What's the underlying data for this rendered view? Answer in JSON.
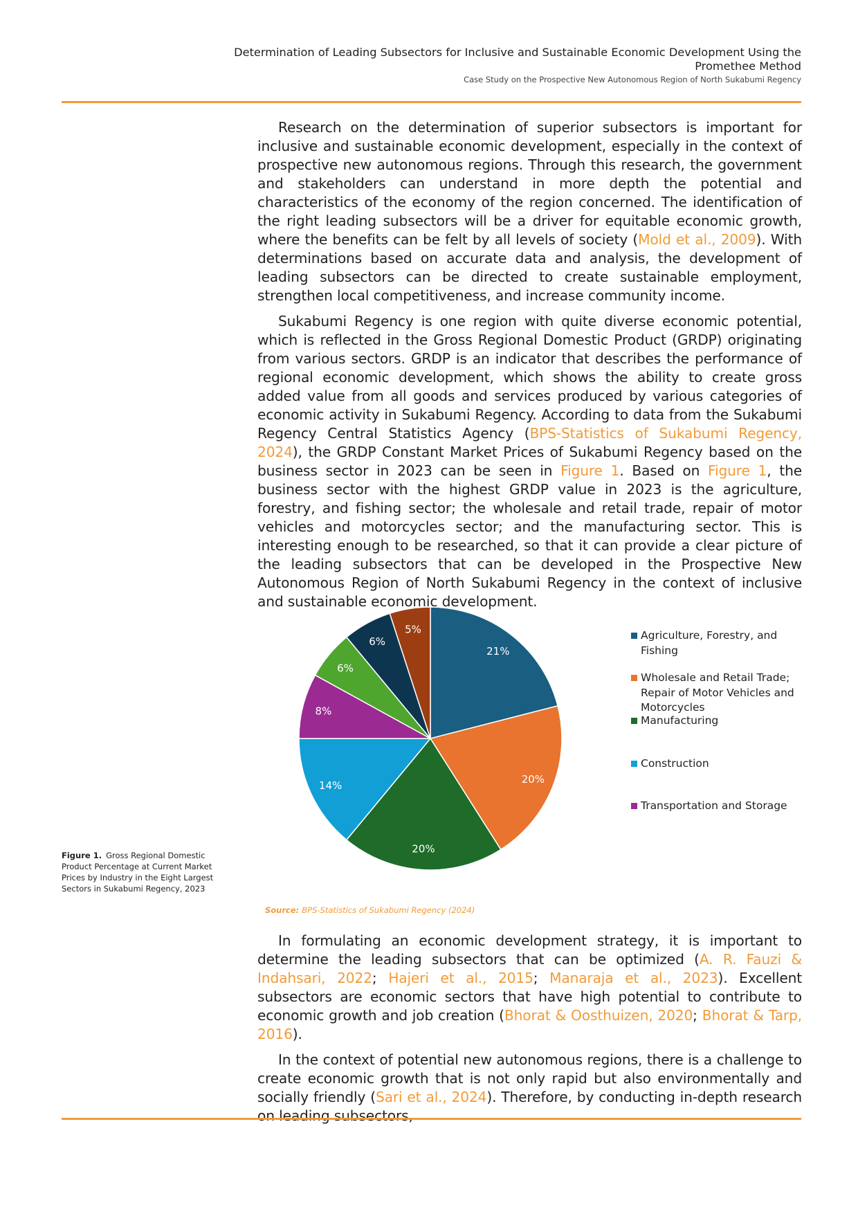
{
  "header": {
    "title": "Determination of Leading Subsectors for Inclusive and Sustainable Economic Development Using the Promethee Method",
    "subtitle": "Case Study on the Prospective New Autonomous Region of North Sukabumi Regency"
  },
  "paragraphs_top": [
    [
      {
        "text": "Research on the determination of superior subsectors is important for inclusive and sustainable economic development, especially in the context of prospective new autonomous regions. Through this research, the government and stakeholders can understand in more depth the potential and characteristics of the economy of the region concerned. The identification of the right leading subsectors will be a driver for equitable economic growth, where the benefits can be felt by all levels of society ("
      },
      {
        "text": "Mold et al., 2009",
        "ref": true
      },
      {
        "text": "). With determinations based on accurate data and analysis, the development of leading subsectors can be directed to create sustainable employment, strengthen local competitiveness, and increase community income."
      }
    ],
    [
      {
        "text": "Sukabumi Regency is one region with quite diverse economic potential, which is reflected in the Gross Regional Domestic Product (GRDP) originating from various sectors. GRDP is an indicator that describes the performance of regional economic development, which shows the ability to create gross added value from all goods and services produced by various categories of economic activity in Sukabumi Regency. According to data from the Sukabumi Regency Central Statistics Agency ("
      },
      {
        "text": "BPS-Statistics of Sukabumi Regency, 2024",
        "ref": true
      },
      {
        "text": "), the GRDP Constant Market Prices of Sukabumi Regency based on the business sector in 2023 can be seen in "
      },
      {
        "text": "Figure 1",
        "ref": true
      },
      {
        "text": ". Based on "
      },
      {
        "text": "Figure 1",
        "ref": true
      },
      {
        "text": ", the business sector with the highest GRDP value in 2023 is the agriculture, forestry, and fishing sector; the wholesale and retail trade, repair of motor vehicles and motorcycles sector; and the manufacturing sector. This is interesting enough to be researched, so that it can provide a clear picture of the leading subsectors that can be developed in the Prospective New Autonomous Region of North Sukabumi Regency in the context of inclusive and sustainable economic development."
      }
    ]
  ],
  "paragraphs_bottom": [
    [
      {
        "text": "In formulating an economic development strategy, it is important to determine the leading subsectors that can be optimized ("
      },
      {
        "text": "A. R. Fauzi & Indahsari, 2022",
        "ref": true
      },
      {
        "text": "; "
      },
      {
        "text": "Hajeri et al., 2015",
        "ref": true
      },
      {
        "text": "; "
      },
      {
        "text": "Manaraja et al., 2023",
        "ref": true
      },
      {
        "text": "). Excellent subsectors are economic sectors that have high potential to contribute to economic growth and job creation ("
      },
      {
        "text": "Bhorat & Oosthuizen, 2020",
        "ref": true
      },
      {
        "text": "; "
      },
      {
        "text": "Bhorat & Tarp, 2016",
        "ref": true
      },
      {
        "text": ")."
      }
    ],
    [
      {
        "text": "In the context of potential new autonomous regions, there is a challenge to create economic growth that is not only rapid but also environmentally and socially friendly ("
      },
      {
        "text": "Sari et al., 2024",
        "ref": true
      },
      {
        "text": "). Therefore, by conducting in-depth research on leading subsectors,"
      }
    ]
  ],
  "figure": {
    "number": "Figure 1.",
    "caption": "Gross Regional Domestic Product Percentage at Current Market Prices by Industry in the Eight Largest Sectors in Sukabumi Regency, 2023",
    "source_label": "Source:",
    "source_text": "BPS-Statistics of Sukabumi Regency (2024)"
  },
  "chart_data": {
    "type": "pie",
    "title": "",
    "slices": [
      {
        "name": "Agriculture, Forestry, and Fishing",
        "value": 21,
        "label": "21%",
        "color": "#1a5e82",
        "legend": true
      },
      {
        "name": "Wholesale and Retail Trade; Repair of Motor Vehicles and Motorcycles",
        "value": 20,
        "label": "20%",
        "color": "#e8742f",
        "legend": true
      },
      {
        "name": "Manufacturing",
        "value": 20,
        "label": "20%",
        "color": "#1e6b2a",
        "legend": true
      },
      {
        "name": "Construction",
        "value": 14,
        "label": "14%",
        "color": "#129fd6",
        "legend": true
      },
      {
        "name": "Transportation and Storage",
        "value": 8,
        "label": "8%",
        "color": "#9b2a92",
        "legend": true
      },
      {
        "name": "",
        "value": 6,
        "label": "6%",
        "color": "#4ea62f",
        "legend": false
      },
      {
        "name": "",
        "value": 6,
        "label": "6%",
        "color": "#0e3550",
        "legend": false
      },
      {
        "name": "",
        "value": 5,
        "label": "5%",
        "color": "#9c3d12",
        "legend": false
      }
    ],
    "legend_position": "right",
    "start_angle": "12 o'clock",
    "direction": "clockwise"
  },
  "colors": {
    "accent": "#f29b38",
    "text": "#231f20"
  }
}
